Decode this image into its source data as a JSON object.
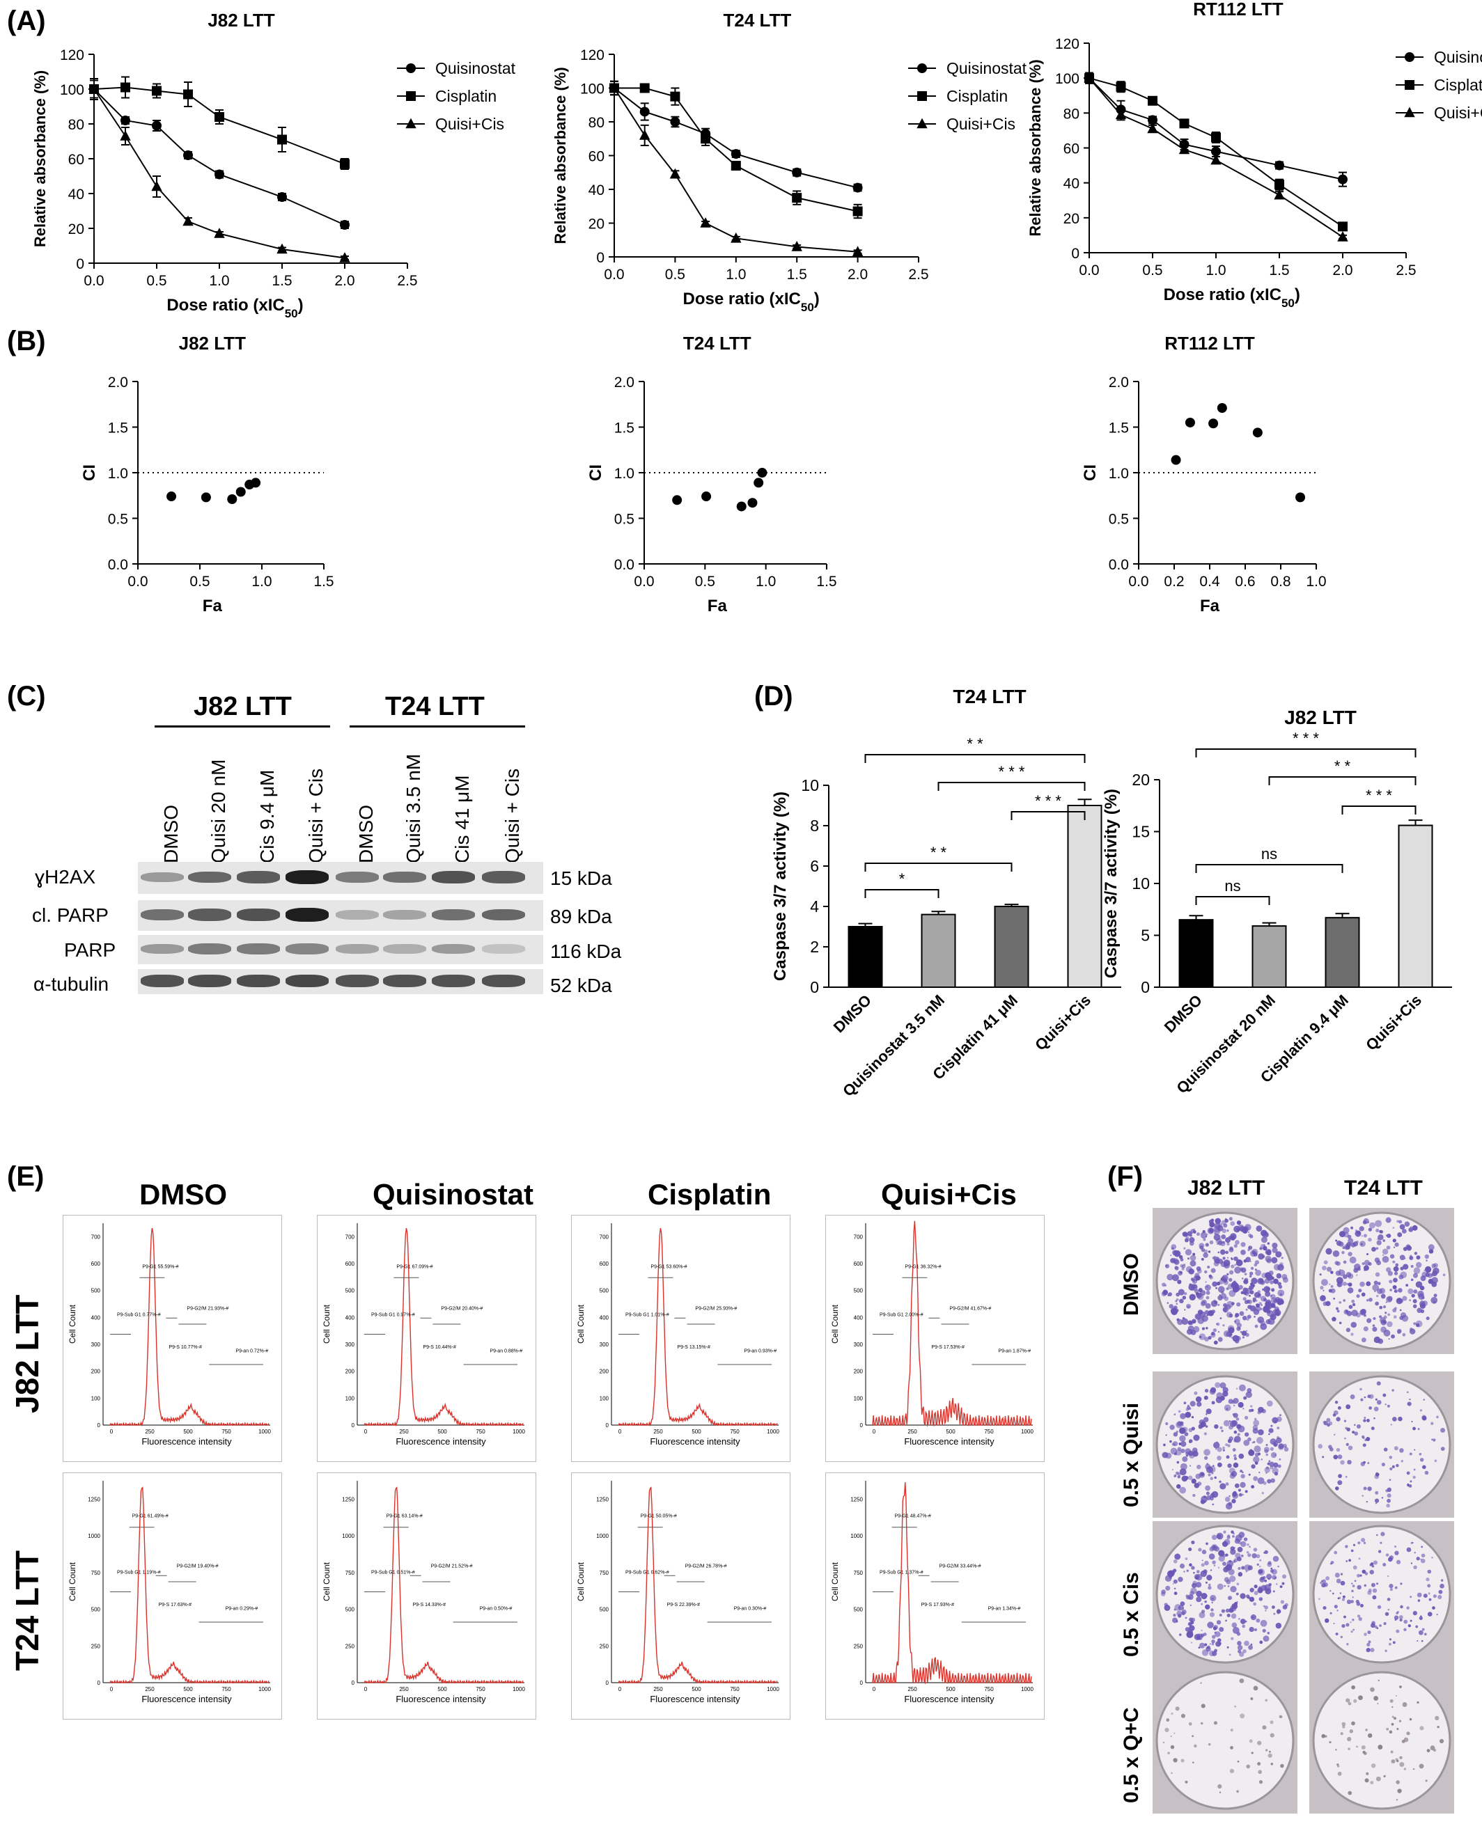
{
  "panels": {
    "A": "(A)",
    "B": "(B)",
    "C": "(C)",
    "D": "(D)",
    "E": "(E)",
    "F": "(F)"
  },
  "chart_data": [
    {
      "id": "A-J82",
      "type": "line",
      "title": "J82 LTT",
      "xlabel": "Dose ratio (xIC",
      "xlabel_sub": "50",
      "xlabel_end": ")",
      "ylabel": "Relative absorbance (%)",
      "xlim": [
        0,
        2.5
      ],
      "ylim": [
        0,
        120
      ],
      "xticks": [
        "0.0",
        "0.5",
        "1.0",
        "1.5",
        "2.0",
        "2.5"
      ],
      "yticks": [
        "0",
        "20",
        "40",
        "60",
        "80",
        "100",
        "120"
      ],
      "x": [
        0,
        0.25,
        0.5,
        0.75,
        1.0,
        1.5,
        2.0
      ],
      "series": [
        {
          "name": "Quisinostat",
          "marker": "circle",
          "values": [
            100,
            82,
            79,
            62,
            51,
            38,
            22
          ],
          "err": [
            5,
            2,
            3,
            2,
            2,
            2,
            2
          ]
        },
        {
          "name": "Cisplatin",
          "marker": "square",
          "values": [
            100,
            101,
            99,
            97,
            84,
            71,
            57
          ],
          "err": [
            6,
            6,
            4,
            7,
            4,
            7,
            3
          ]
        },
        {
          "name": "Quisi+Cis",
          "marker": "triangle",
          "values": [
            100,
            73,
            44,
            24,
            17,
            8,
            3
          ],
          "err": [
            5,
            5,
            6,
            2,
            1,
            1,
            1
          ]
        }
      ],
      "legend": "top-right"
    },
    {
      "id": "A-T24",
      "type": "line",
      "title": "T24 LTT",
      "xlabel": "Dose ratio (xIC",
      "xlabel_sub": "50",
      "xlabel_end": ")",
      "ylabel": "Relative absorbance (%)",
      "xlim": [
        0,
        2.5
      ],
      "ylim": [
        0,
        120
      ],
      "xticks": [
        "0.0",
        "0.5",
        "1.0",
        "1.5",
        "2.0",
        "2.5"
      ],
      "yticks": [
        "0",
        "20",
        "40",
        "60",
        "80",
        "100",
        "120"
      ],
      "x": [
        0,
        0.25,
        0.5,
        0.75,
        1.0,
        1.5,
        2.0
      ],
      "series": [
        {
          "name": "Quisinostat",
          "marker": "circle",
          "values": [
            100,
            86,
            80,
            73,
            61,
            50,
            41
          ],
          "err": [
            4,
            5,
            3,
            3,
            2,
            2,
            2
          ]
        },
        {
          "name": "Cisplatin",
          "marker": "square",
          "values": [
            100,
            100,
            95,
            70,
            54,
            35,
            27
          ],
          "err": [
            4,
            2,
            5,
            4,
            2,
            4,
            4
          ]
        },
        {
          "name": "Quisi+Cis",
          "marker": "triangle",
          "values": [
            100,
            72,
            49,
            20,
            11,
            6,
            3
          ],
          "err": [
            4,
            6,
            2,
            1,
            1,
            1,
            1
          ]
        }
      ],
      "legend": "top-right"
    },
    {
      "id": "A-RT112",
      "type": "line",
      "title": "RT112 LTT",
      "xlabel": "Dose ratio (xIC",
      "xlabel_sub": "50",
      "xlabel_end": ")",
      "ylabel": "Relative absorbance (%)",
      "xlim": [
        0,
        2.5
      ],
      "ylim": [
        0,
        120
      ],
      "xticks": [
        "0.0",
        "0.5",
        "1.0",
        "1.5",
        "2.0",
        "2.5"
      ],
      "yticks": [
        "0",
        "20",
        "40",
        "60",
        "80",
        "100",
        "120"
      ],
      "x": [
        0,
        0.25,
        0.5,
        0.75,
        1.0,
        1.5,
        2.0
      ],
      "series": [
        {
          "name": "Quisinostat",
          "marker": "circle",
          "values": [
            100,
            82,
            76,
            62,
            58,
            50,
            42
          ],
          "err": [
            3,
            5,
            2,
            3,
            3,
            2,
            4
          ]
        },
        {
          "name": "Cisplatin",
          "marker": "square",
          "values": [
            100,
            95,
            87,
            74,
            66,
            39,
            15
          ],
          "err": [
            3,
            3,
            2,
            2,
            3,
            3,
            2
          ]
        },
        {
          "name": "Quisi+Cis",
          "marker": "triangle",
          "values": [
            100,
            79,
            71,
            59,
            53,
            33,
            9
          ],
          "err": [
            3,
            3,
            2,
            2,
            2,
            2,
            1
          ]
        }
      ],
      "legend": "top-right"
    },
    {
      "id": "B-J82",
      "type": "scatter",
      "title": "J82 LTT",
      "xlabel": "Fa",
      "ylabel": "CI",
      "xlim": [
        0,
        1.5
      ],
      "ylim": [
        0,
        2.0
      ],
      "xticks": [
        "0.0",
        "0.5",
        "1.0",
        "1.5"
      ],
      "yticks": [
        "0.0",
        "0.5",
        "1.0",
        "1.5",
        "2.0"
      ],
      "reference_line": 1.0,
      "x": [
        0.27,
        0.55,
        0.76,
        0.83,
        0.9,
        0.95
      ],
      "y": [
        0.74,
        0.73,
        0.71,
        0.79,
        0.87,
        0.89
      ]
    },
    {
      "id": "B-T24",
      "type": "scatter",
      "title": "T24 LTT",
      "xlabel": "Fa",
      "ylabel": "CI",
      "xlim": [
        0,
        1.5
      ],
      "ylim": [
        0,
        2.0
      ],
      "xticks": [
        "0.0",
        "0.5",
        "1.0",
        "1.5"
      ],
      "yticks": [
        "0.0",
        "0.5",
        "1.0",
        "1.5",
        "2.0"
      ],
      "reference_line": 1.0,
      "x": [
        0.27,
        0.51,
        0.8,
        0.89,
        0.94,
        0.97
      ],
      "y": [
        0.7,
        0.74,
        0.63,
        0.67,
        0.89,
        1.0
      ]
    },
    {
      "id": "B-RT112",
      "type": "scatter",
      "title": "RT112 LTT",
      "xlabel": "Fa",
      "ylabel": "CI",
      "xlim": [
        0,
        1.0
      ],
      "ylim": [
        0,
        2.0
      ],
      "xticks": [
        "0.0",
        "0.2",
        "0.4",
        "0.6",
        "0.8",
        "1.0"
      ],
      "yticks": [
        "0.0",
        "0.5",
        "1.0",
        "1.5",
        "2.0"
      ],
      "reference_line": 1.0,
      "x": [
        0.21,
        0.29,
        0.42,
        0.47,
        0.67,
        0.91
      ],
      "y": [
        1.14,
        1.55,
        1.54,
        1.71,
        1.44,
        0.73
      ]
    },
    {
      "id": "D-T24",
      "type": "bar",
      "title": "T24 LTT",
      "ylabel": "Caspase 3/7 activity (%)",
      "ylim": [
        0,
        10
      ],
      "yticks": [
        "0",
        "2",
        "4",
        "6",
        "8",
        "10"
      ],
      "categories": [
        "DMSO",
        "Quisinostat 3.5 nM",
        "Cisplatin 41 μM",
        "Quisi+Cis"
      ],
      "values": [
        3.0,
        3.6,
        4.0,
        9.0
      ],
      "err": [
        0.15,
        0.15,
        0.1,
        0.3
      ],
      "bar_colors": [
        "#000000",
        "#a6a6a6",
        "#6e6e6e",
        "#dedede"
      ],
      "significance": [
        {
          "from": 0,
          "to": 1,
          "label": "*"
        },
        {
          "from": 0,
          "to": 2,
          "label": "* *"
        },
        {
          "from": 2,
          "to": 3,
          "label": "* * *"
        },
        {
          "from": 1,
          "to": 3,
          "label": "* * *"
        },
        {
          "from": 0,
          "to": 3,
          "label": "* *"
        }
      ]
    },
    {
      "id": "D-J82",
      "type": "bar",
      "title": "J82 LTT",
      "ylabel": "Caspase 3/7 activity (%)",
      "ylim": [
        0,
        20
      ],
      "yticks": [
        "0",
        "5",
        "10",
        "15",
        "20"
      ],
      "categories": [
        "DMSO",
        "Quisinostat 20 nM",
        "Cisplatin 9.4 μM",
        "Quisi+Cis"
      ],
      "values": [
        6.5,
        5.9,
        6.7,
        15.6
      ],
      "err": [
        0.4,
        0.3,
        0.4,
        0.5
      ],
      "bar_colors": [
        "#000000",
        "#a6a6a6",
        "#6e6e6e",
        "#dedede"
      ],
      "significance": [
        {
          "from": 0,
          "to": 1,
          "label": "ns"
        },
        {
          "from": 0,
          "to": 2,
          "label": "ns"
        },
        {
          "from": 2,
          "to": 3,
          "label": "* * *"
        },
        {
          "from": 1,
          "to": 3,
          "label": "* *"
        },
        {
          "from": 0,
          "to": 3,
          "label": "* * *"
        }
      ]
    }
  ],
  "blot": {
    "groups": [
      "J82 LTT",
      "T24 LTT"
    ],
    "lanes": [
      "DMSO",
      "Quisi  20 nM",
      "Cis 9.4 μM",
      "Quisi + Cis",
      "DMSO",
      "Quisi  3.5 nM",
      "Cis 41 μM",
      "Quisi + Cis"
    ],
    "rows": [
      {
        "label": "ɣH2AX",
        "kda": "15 kDa",
        "intensity": [
          0.35,
          0.6,
          0.65,
          0.95,
          0.5,
          0.55,
          0.7,
          0.65
        ]
      },
      {
        "label": "cl. PARP",
        "kda": "89 kDa",
        "intensity": [
          0.55,
          0.65,
          0.7,
          0.95,
          0.25,
          0.3,
          0.55,
          0.6
        ]
      },
      {
        "label": "PARP",
        "kda": "116 kDa",
        "intensity": [
          0.35,
          0.5,
          0.5,
          0.45,
          0.3,
          0.25,
          0.35,
          0.15
        ]
      },
      {
        "label": "α-tubulin",
        "kda": "52 kDa",
        "intensity": [
          0.7,
          0.72,
          0.72,
          0.75,
          0.7,
          0.7,
          0.7,
          0.7
        ]
      }
    ]
  },
  "flow": {
    "columns": [
      "DMSO",
      "Quisinostat",
      "Cisplatin",
      "Quisi+Cis"
    ],
    "rows": [
      "J82 LTT",
      "T24 LTT"
    ],
    "xlabel": "Fluorescence intensity",
    "ylabel": "Cell Count",
    "xticks": [
      "0",
      "250",
      "500",
      "750",
      "1000"
    ],
    "gates": [
      [
        {
          "g1": "P9-G1 55.59%-#",
          "subg1": "P9-Sub G1 0.77%-#",
          "g2m": "P9-G2/M 21.93%-#",
          "s": "P9-S 10.77%-#",
          "an": "P9-an 0.72%-#"
        },
        {
          "g1": "P9-G1 67.09%-#",
          "subg1": "P9-Sub G1 0.97%-#",
          "g2m": "P9-G2/M 20.40%-#",
          "s": "P9-S 10.44%-#",
          "an": "P9-an 0.88%-#"
        },
        {
          "g1": "P9-G1 53.60%-#",
          "subg1": "P9-Sub G1 1.01%-#",
          "g2m": "P9-G2/M 25.93%-#",
          "s": "P9-S 13.15%-#",
          "an": "P9-an 0.93%-#"
        },
        {
          "g1": "P9-G1 36.32%-#",
          "subg1": "P9-Sub G1 2.00%-#",
          "g2m": "P9-G2/M 41.67%-#",
          "s": "P9-S 17.53%-#",
          "an": "P9-an 1.87%-#"
        }
      ],
      [
        {
          "g1": "P9-G1 61.49%-#",
          "subg1": "P9-Sub G1 1.19%-#",
          "g2m": "P9-G2/M 19.40%-#",
          "s": "P9-S 17.63%-#",
          "an": "P9-an 0.29%-#"
        },
        {
          "g1": "P9-G1 63.14%-#",
          "subg1": "P9-Sub G1 0.51%-#",
          "g2m": "P9-G2/M 21.52%-#",
          "s": "P9-S 14.33%-#",
          "an": "P9-an 0.50%-#"
        },
        {
          "g1": "P9-G1 50.05%-#",
          "subg1": "P9-Sub G1 0.62%-#",
          "g2m": "P9-G2/M 26.78%-#",
          "s": "P9-S 22.39%-#",
          "an": "P9-an 0.30%-#"
        },
        {
          "g1": "P9-G1 48.47%-#",
          "subg1": "P9-Sub G1 1.37%-#",
          "g2m": "P9-G2/M 33.44%-#",
          "s": "P9-S 17.93%-#",
          "an": "P9-an 1.34%-#"
        }
      ]
    ]
  },
  "colony": {
    "columns": [
      "J82 LTT",
      "T24 LTT"
    ],
    "rows": [
      "DMSO",
      "0.5 x Quisi",
      "0.5 x Cis",
      "0.5 x Q+C"
    ],
    "density": [
      [
        1.0,
        0.55
      ],
      [
        0.55,
        0.2
      ],
      [
        0.6,
        0.3
      ],
      [
        0.03,
        0.08
      ]
    ]
  }
}
